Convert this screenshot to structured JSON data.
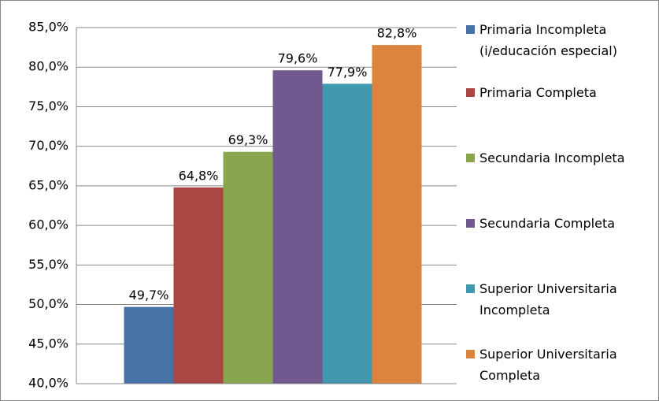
{
  "chart_data": {
    "type": "bar",
    "series": [
      {
        "name": "Primaria Incompleta (i/educación especial)",
        "color": "#4572a7",
        "values": [
          49.7
        ],
        "value_labels": [
          "49,7%"
        ]
      },
      {
        "name": "Primaria Completa",
        "color": "#aa4643",
        "values": [
          64.8
        ],
        "value_labels": [
          "64,8%"
        ]
      },
      {
        "name": "Secundaria Incompleta",
        "color": "#89a54e",
        "values": [
          69.3
        ],
        "value_labels": [
          "69,3%"
        ]
      },
      {
        "name": "Secundaria Completa",
        "color": "#71588f",
        "values": [
          79.6
        ],
        "value_labels": [
          "79,6%"
        ]
      },
      {
        "name": "Superior Universitaria Incompleta",
        "color": "#4198af",
        "values": [
          77.9
        ],
        "value_labels": [
          "77,9%"
        ]
      },
      {
        "name": "Superior Universitaria Completa",
        "color": "#db843d",
        "values": [
          82.8
        ],
        "value_labels": [
          "82,8%"
        ]
      }
    ],
    "ylim": [
      40,
      85
    ],
    "yticks": [
      {
        "value": 40,
        "label": "40,0%"
      },
      {
        "value": 45,
        "label": "45,0%"
      },
      {
        "value": 50,
        "label": "50,0%"
      },
      {
        "value": 55,
        "label": "55,0%"
      },
      {
        "value": 60,
        "label": "60,0%"
      },
      {
        "value": 65,
        "label": "65,0%"
      },
      {
        "value": 70,
        "label": "70,0%"
      },
      {
        "value": 75,
        "label": "75,0%"
      },
      {
        "value": 80,
        "label": "80,0%"
      },
      {
        "value": 85,
        "label": "85,0%"
      }
    ],
    "grid": true,
    "legend": "right"
  }
}
